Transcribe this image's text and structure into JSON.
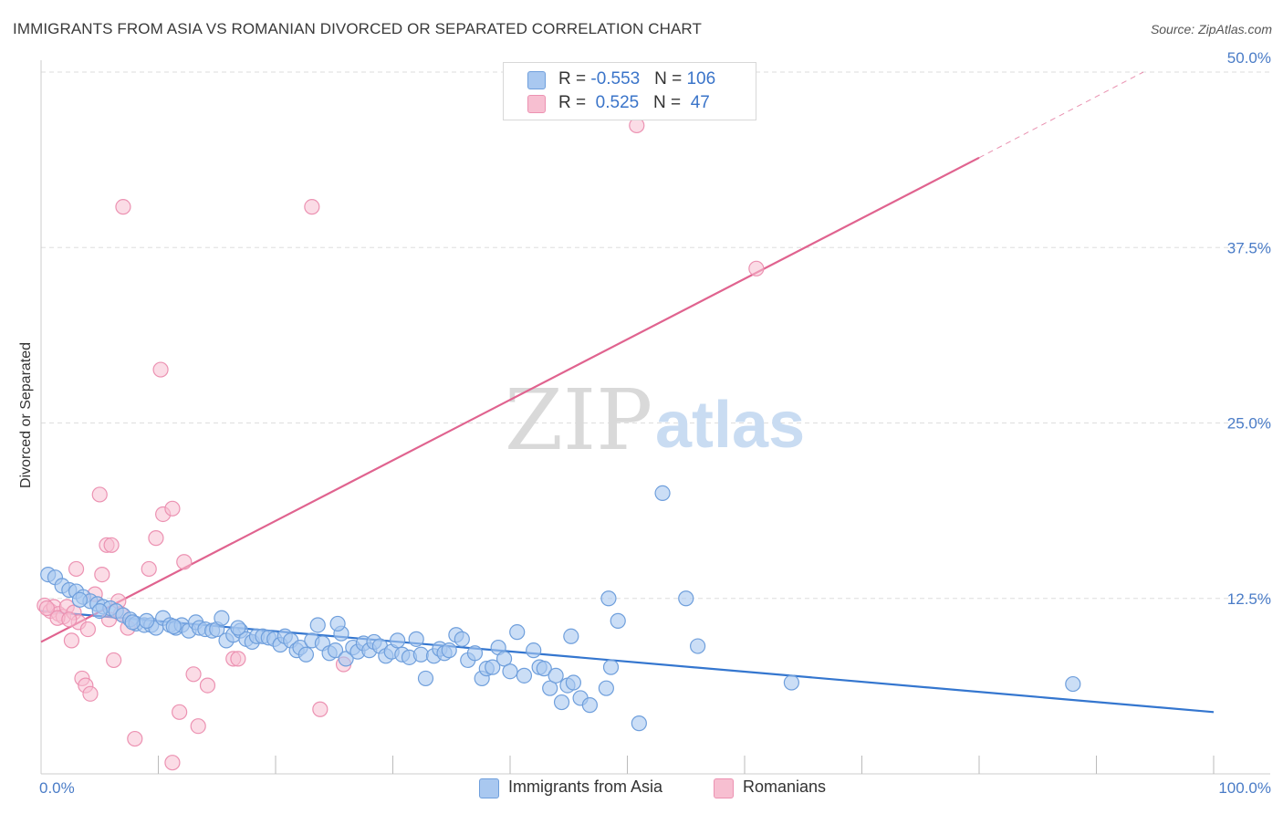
{
  "title": "IMMIGRANTS FROM ASIA VS ROMANIAN DIVORCED OR SEPARATED CORRELATION CHART",
  "source": "Source: ZipAtlas.com",
  "watermark": {
    "zip": "ZIP",
    "atlas": "atlas"
  },
  "legend_top": {
    "asia": {
      "r_label": "R = ",
      "r_value": "-0.553",
      "n_label": "N = ",
      "n_value": "106"
    },
    "romanians": {
      "r_label": "R = ",
      "r_value": " 0.525",
      "n_label": "N = ",
      "n_value": " 47"
    }
  },
  "legend_bottom": {
    "asia": "Immigrants from Asia",
    "romanians": "Romanians"
  },
  "colors": {
    "asia_fill": "#a9c8f0",
    "asia_stroke": "#6f9fdc",
    "asia_line": "#3476cf",
    "rom_fill": "#f7bfd1",
    "rom_stroke": "#ec92b2",
    "rom_line": "#e0638f",
    "tick": "#4a7cc7",
    "grid": "#dedede"
  },
  "chart_data": {
    "type": "scatter",
    "title": "IMMIGRANTS FROM ASIA VS ROMANIAN DIVORCED OR SEPARATED CORRELATION CHART",
    "xlabel": "",
    "ylabel": "Divorced or Separated",
    "xlim": [
      0,
      100
    ],
    "ylim": [
      0,
      50
    ],
    "x_tick_labels": [
      "0.0%",
      "100.0%"
    ],
    "y_ticks": [
      12.5,
      25.0,
      37.5,
      50.0
    ],
    "y_tick_labels": [
      "12.5%",
      "25.0%",
      "37.5%",
      "50.0%"
    ],
    "grid": true,
    "legend": "top-center",
    "series": [
      {
        "name": "Immigrants from Asia",
        "r": -0.553,
        "n": 106,
        "trend": {
          "x": [
            0,
            100
          ],
          "y": [
            11.6,
            4.4
          ]
        },
        "points": [
          [
            0.6,
            14.2
          ],
          [
            1.2,
            14.0
          ],
          [
            1.8,
            13.4
          ],
          [
            2.4,
            13.1
          ],
          [
            3.0,
            13.0
          ],
          [
            3.6,
            12.6
          ],
          [
            4.2,
            12.3
          ],
          [
            4.8,
            12.1
          ],
          [
            5.3,
            11.9
          ],
          [
            5.9,
            11.8
          ],
          [
            6.4,
            11.6
          ],
          [
            7.0,
            11.3
          ],
          [
            7.6,
            11.0
          ],
          [
            8.1,
            10.7
          ],
          [
            8.8,
            10.6
          ],
          [
            9.4,
            10.6
          ],
          [
            9.8,
            10.4
          ],
          [
            10.4,
            11.1
          ],
          [
            11.0,
            10.6
          ],
          [
            11.5,
            10.4
          ],
          [
            12.0,
            10.6
          ],
          [
            12.6,
            10.2
          ],
          [
            13.2,
            10.8
          ],
          [
            13.5,
            10.4
          ],
          [
            14.0,
            10.3
          ],
          [
            14.6,
            10.2
          ],
          [
            15.0,
            10.3
          ],
          [
            15.4,
            11.1
          ],
          [
            15.8,
            9.5
          ],
          [
            16.4,
            9.9
          ],
          [
            17.0,
            10.2
          ],
          [
            17.5,
            9.6
          ],
          [
            18.0,
            9.4
          ],
          [
            18.4,
            9.8
          ],
          [
            18.9,
            9.8
          ],
          [
            19.4,
            9.7
          ],
          [
            19.9,
            9.6
          ],
          [
            20.4,
            9.2
          ],
          [
            20.8,
            9.8
          ],
          [
            21.3,
            9.5
          ],
          [
            21.8,
            8.8
          ],
          [
            22.1,
            9.0
          ],
          [
            22.6,
            8.5
          ],
          [
            23.1,
            9.5
          ],
          [
            23.6,
            10.6
          ],
          [
            24.0,
            9.3
          ],
          [
            24.6,
            8.6
          ],
          [
            25.1,
            8.8
          ],
          [
            25.6,
            10.0
          ],
          [
            26.0,
            8.2
          ],
          [
            26.6,
            9.0
          ],
          [
            27.0,
            8.7
          ],
          [
            27.5,
            9.3
          ],
          [
            28.0,
            8.8
          ],
          [
            28.4,
            9.4
          ],
          [
            28.9,
            9.1
          ],
          [
            29.4,
            8.4
          ],
          [
            29.9,
            8.7
          ],
          [
            30.4,
            9.5
          ],
          [
            30.8,
            8.5
          ],
          [
            31.4,
            8.3
          ],
          [
            32.0,
            9.6
          ],
          [
            32.4,
            8.5
          ],
          [
            32.8,
            6.8
          ],
          [
            33.5,
            8.4
          ],
          [
            34.0,
            8.9
          ],
          [
            34.4,
            8.6
          ],
          [
            34.8,
            8.8
          ],
          [
            35.4,
            9.9
          ],
          [
            35.9,
            9.6
          ],
          [
            36.4,
            8.1
          ],
          [
            37.0,
            8.6
          ],
          [
            37.6,
            6.8
          ],
          [
            38.0,
            7.5
          ],
          [
            38.5,
            7.6
          ],
          [
            39.0,
            9.0
          ],
          [
            39.5,
            8.2
          ],
          [
            40.0,
            7.3
          ],
          [
            40.6,
            10.1
          ],
          [
            41.2,
            7.0
          ],
          [
            42.0,
            8.8
          ],
          [
            42.5,
            7.6
          ],
          [
            42.9,
            7.5
          ],
          [
            43.4,
            6.1
          ],
          [
            43.9,
            7.0
          ],
          [
            44.4,
            5.1
          ],
          [
            44.9,
            6.3
          ],
          [
            45.2,
            9.8
          ],
          [
            45.4,
            6.5
          ],
          [
            46.0,
            5.4
          ],
          [
            46.8,
            4.9
          ],
          [
            48.2,
            6.1
          ],
          [
            48.4,
            12.5
          ],
          [
            48.6,
            7.6
          ],
          [
            49.2,
            10.9
          ],
          [
            51.0,
            3.6
          ],
          [
            53.0,
            20.0
          ],
          [
            55.0,
            12.5
          ],
          [
            56.0,
            9.1
          ],
          [
            64.0,
            6.5
          ],
          [
            88.0,
            6.4
          ],
          [
            25.3,
            10.7
          ],
          [
            16.8,
            10.4
          ],
          [
            9.0,
            10.9
          ],
          [
            3.3,
            12.4
          ],
          [
            5.0,
            11.6
          ],
          [
            7.8,
            10.8
          ],
          [
            11.3,
            10.5
          ]
        ]
      },
      {
        "name": "Romanians",
        "r": 0.525,
        "n": 47,
        "trend": {
          "x": [
            0,
            80
          ],
          "y": [
            9.4,
            43.9
          ]
        },
        "trend_dashed": {
          "x": [
            80,
            94
          ],
          "y": [
            43.9,
            50.0
          ]
        },
        "points": [
          [
            0.3,
            12.0
          ],
          [
            0.8,
            11.6
          ],
          [
            1.1,
            11.9
          ],
          [
            1.5,
            11.4
          ],
          [
            1.9,
            11.2
          ],
          [
            2.2,
            11.9
          ],
          [
            2.6,
            9.5
          ],
          [
            2.8,
            11.5
          ],
          [
            3.0,
            14.6
          ],
          [
            3.2,
            10.8
          ],
          [
            3.5,
            6.8
          ],
          [
            3.8,
            6.3
          ],
          [
            4.0,
            10.3
          ],
          [
            4.2,
            5.7
          ],
          [
            4.6,
            12.8
          ],
          [
            5.0,
            19.9
          ],
          [
            5.2,
            14.2
          ],
          [
            5.6,
            16.3
          ],
          [
            5.8,
            11.0
          ],
          [
            6.0,
            16.3
          ],
          [
            6.2,
            8.1
          ],
          [
            6.6,
            12.3
          ],
          [
            6.8,
            11.4
          ],
          [
            7.0,
            40.4
          ],
          [
            7.4,
            10.4
          ],
          [
            8.0,
            2.5
          ],
          [
            9.2,
            14.6
          ],
          [
            9.8,
            16.8
          ],
          [
            10.2,
            28.8
          ],
          [
            10.4,
            18.5
          ],
          [
            11.2,
            18.9
          ],
          [
            11.2,
            0.8
          ],
          [
            11.8,
            4.4
          ],
          [
            12.2,
            15.1
          ],
          [
            13.0,
            7.1
          ],
          [
            13.4,
            3.4
          ],
          [
            14.2,
            6.3
          ],
          [
            16.4,
            8.2
          ],
          [
            16.8,
            8.2
          ],
          [
            23.1,
            40.4
          ],
          [
            23.8,
            4.6
          ],
          [
            25.8,
            7.8
          ],
          [
            50.8,
            46.2
          ],
          [
            61.0,
            36.0
          ],
          [
            1.4,
            11.1
          ],
          [
            2.4,
            11.0
          ],
          [
            0.5,
            11.8
          ]
        ]
      }
    ]
  }
}
